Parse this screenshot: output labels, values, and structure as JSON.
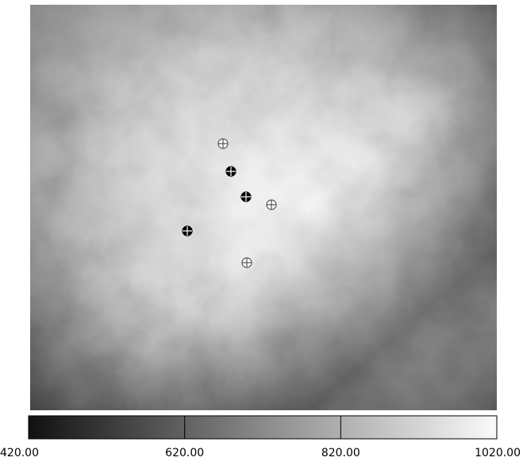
{
  "colorbar": {
    "range": [
      420,
      1020
    ],
    "ticks": [
      {
        "value": 420,
        "label": "420.00"
      },
      {
        "value": 620,
        "label": "620.00"
      },
      {
        "value": 820,
        "label": "820.00"
      },
      {
        "value": 1020,
        "label": "1020.00"
      }
    ]
  }
}
